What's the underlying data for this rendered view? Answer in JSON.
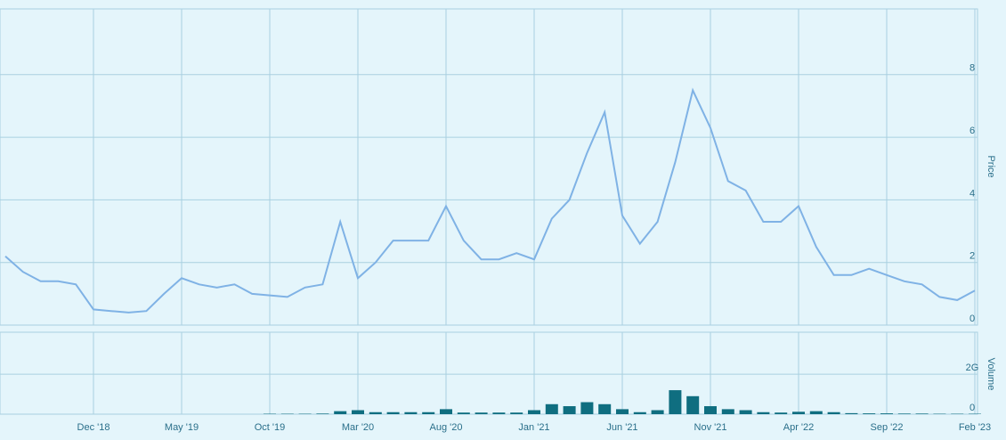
{
  "chart_data": [
    {
      "type": "line",
      "ylabel": "Price",
      "color": "#7fb2e5",
      "x": [
        "2018-07",
        "2018-08",
        "2018-09",
        "2018-10",
        "2018-11",
        "2018-12",
        "2019-01",
        "2019-02",
        "2019-03",
        "2019-04",
        "2019-05",
        "2019-06",
        "2019-07",
        "2019-08",
        "2019-09",
        "2019-10",
        "2019-11",
        "2019-12",
        "2020-01",
        "2020-02",
        "2020-03",
        "2020-04",
        "2020-05",
        "2020-06",
        "2020-07",
        "2020-08",
        "2020-09",
        "2020-10",
        "2020-11",
        "2020-12",
        "2021-01",
        "2021-02",
        "2021-03",
        "2021-04",
        "2021-05",
        "2021-06",
        "2021-07",
        "2021-08",
        "2021-09",
        "2021-10",
        "2021-11",
        "2021-12",
        "2022-01",
        "2022-02",
        "2022-03",
        "2022-04",
        "2022-05",
        "2022-06",
        "2022-07",
        "2022-08",
        "2022-09",
        "2022-10",
        "2022-11",
        "2022-12",
        "2023-01",
        "2023-02"
      ],
      "values": [
        2.2,
        1.7,
        1.4,
        1.4,
        1.3,
        0.5,
        0.45,
        0.4,
        0.45,
        1.0,
        1.5,
        1.3,
        1.2,
        1.3,
        1.0,
        0.95,
        0.9,
        1.2,
        1.3,
        3.3,
        1.5,
        2.0,
        2.7,
        2.7,
        2.7,
        3.8,
        2.7,
        2.1,
        2.1,
        2.3,
        2.1,
        3.4,
        4.0,
        5.5,
        6.8,
        3.5,
        2.6,
        3.3,
        5.2,
        7.5,
        6.3,
        4.6,
        4.3,
        3.3,
        3.3,
        3.8,
        2.5,
        1.6,
        1.6,
        1.8,
        1.6,
        1.4,
        1.3,
        0.9,
        0.8,
        1.1
      ],
      "xlim": [
        "2018-07",
        "2023-02"
      ],
      "ylim": [
        0,
        10.1
      ],
      "yticks": [
        0,
        2,
        4,
        6,
        8
      ],
      "grid": true
    },
    {
      "type": "bar",
      "ylabel": "Volume",
      "color": "#0f6e80",
      "x": [
        "2018-07",
        "2018-08",
        "2018-09",
        "2018-10",
        "2018-11",
        "2018-12",
        "2019-01",
        "2019-02",
        "2019-03",
        "2019-04",
        "2019-05",
        "2019-06",
        "2019-07",
        "2019-08",
        "2019-09",
        "2019-10",
        "2019-11",
        "2019-12",
        "2020-01",
        "2020-02",
        "2020-03",
        "2020-04",
        "2020-05",
        "2020-06",
        "2020-07",
        "2020-08",
        "2020-09",
        "2020-10",
        "2020-11",
        "2020-12",
        "2021-01",
        "2021-02",
        "2021-03",
        "2021-04",
        "2021-05",
        "2021-06",
        "2021-07",
        "2021-08",
        "2021-09",
        "2021-10",
        "2021-11",
        "2021-12",
        "2022-01",
        "2022-02",
        "2022-03",
        "2022-04",
        "2022-05",
        "2022-06",
        "2022-07",
        "2022-08",
        "2022-09",
        "2022-10",
        "2022-11",
        "2022-12",
        "2023-01",
        "2023-02"
      ],
      "values": [
        0,
        0,
        0,
        0,
        0,
        0,
        0,
        0,
        0,
        0,
        0,
        0,
        0,
        0,
        0,
        20000000,
        20000000,
        20000000,
        30000000,
        150000000,
        200000000,
        100000000,
        100000000,
        100000000,
        100000000,
        250000000,
        80000000,
        80000000,
        80000000,
        80000000,
        200000000,
        500000000,
        400000000,
        600000000,
        500000000,
        250000000,
        100000000,
        200000000,
        1200000000,
        900000000,
        400000000,
        250000000,
        200000000,
        100000000,
        80000000,
        120000000,
        150000000,
        100000000,
        50000000,
        40000000,
        40000000,
        30000000,
        30000000,
        20000000,
        20000000,
        20000000
      ],
      "xlim": [
        "2018-07",
        "2023-02"
      ],
      "ylim": [
        0,
        4100000000
      ],
      "yticks": [
        0,
        {
          "value": 2000000000,
          "label": "2G"
        }
      ],
      "xticks": [
        {
          "value": "2018-12",
          "label": "Dec '18"
        },
        {
          "value": "2019-05",
          "label": "May '19"
        },
        {
          "value": "2019-10",
          "label": "Oct '19"
        },
        {
          "value": "2020-03",
          "label": "Mar '20"
        },
        {
          "value": "2020-08",
          "label": "Aug '20"
        },
        {
          "value": "2021-01",
          "label": "Jan '21"
        },
        {
          "value": "2021-06",
          "label": "Jun '21"
        },
        {
          "value": "2021-11",
          "label": "Nov '21"
        },
        {
          "value": "2022-04",
          "label": "Apr '22"
        },
        {
          "value": "2022-09",
          "label": "Sep '22"
        },
        {
          "value": "2023-02",
          "label": "Feb '23"
        }
      ],
      "grid": true
    }
  ]
}
